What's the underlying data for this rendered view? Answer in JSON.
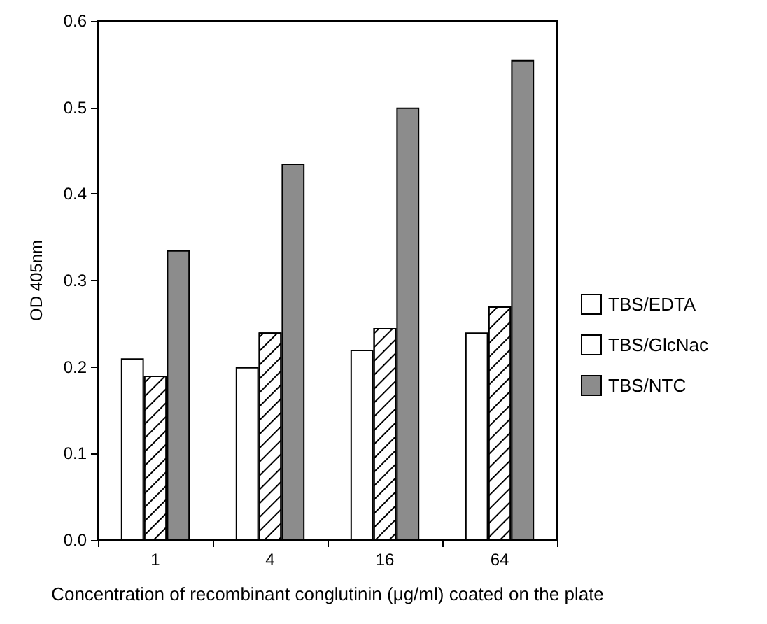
{
  "chart_data": {
    "type": "bar",
    "xlabel": "Concentration of recombinant conglutinin (μg/ml) coated on the plate",
    "ylabel": "OD 405nm",
    "categories": [
      "1",
      "4",
      "16",
      "64"
    ],
    "series": [
      {
        "name": "TBS/EDTA",
        "color": "#ffffff",
        "values": [
          0.21,
          0.2,
          0.22,
          0.24
        ]
      },
      {
        "name": "TBS/GlcNac",
        "color": "#ffffff",
        "values": [
          0.19,
          0.24,
          0.245,
          0.27
        ]
      },
      {
        "name": "TBS/NTC",
        "color": "#8c8c8c",
        "values": [
          0.335,
          0.435,
          0.5,
          0.555
        ]
      }
    ],
    "ylim": [
      0,
      0.6
    ],
    "yticks": [
      {
        "value": 0,
        "label": "0.0"
      },
      0.1,
      0.2,
      0.3,
      0.4,
      0.5,
      0.6
    ],
    "grid": false,
    "legend": "right"
  }
}
